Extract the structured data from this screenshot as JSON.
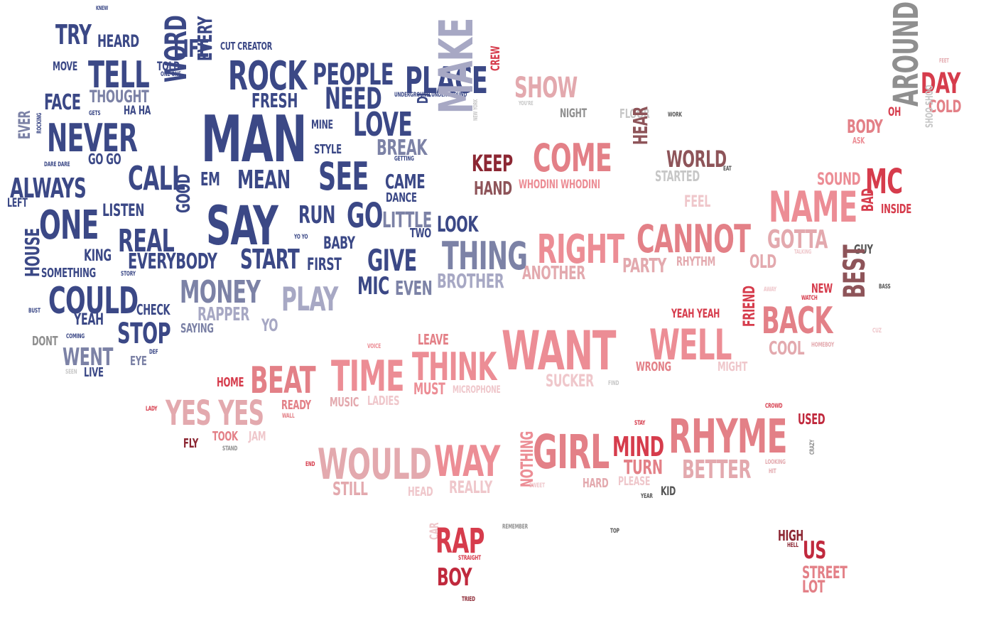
{
  "colors": {
    "navy": "#3b4886",
    "slate": "#7c82a6",
    "lavender": "#a7a8c4",
    "pink": "#ec8d95",
    "salmon": "#e38087",
    "red": "#d63c4c",
    "crimson": "#c0293d",
    "rose": "#e3a9ae",
    "lightrose": "#efc7cb",
    "mauve": "#8e5459",
    "gray": "#8f8f8f",
    "darkgray": "#555555",
    "lightgray": "#c7c7c7",
    "maroon": "#8c2733"
  },
  "words": [
    {
      "text": "KNEW",
      "weight": 8,
      "color": "navy"
    },
    {
      "text": "TRY",
      "weight": 38,
      "color": "navy"
    },
    {
      "text": "HEARD",
      "weight": 24,
      "color": "navy"
    },
    {
      "text": "LIFE",
      "weight": 34,
      "color": "navy"
    },
    {
      "text": "CUT CREATOR",
      "weight": 15,
      "color": "navy"
    },
    {
      "text": "MOVE",
      "weight": 17,
      "color": "navy"
    },
    {
      "text": "TELL",
      "weight": 52,
      "color": "navy"
    },
    {
      "text": "TOLD",
      "weight": 17,
      "color": "navy"
    },
    {
      "text": "ONE ONE",
      "weight": 9,
      "color": "navy"
    },
    {
      "text": "ROCK",
      "weight": 56,
      "color": "navy"
    },
    {
      "text": "PEOPLE",
      "weight": 42,
      "color": "navy"
    },
    {
      "text": "PLACE",
      "weight": 52,
      "color": "navy"
    },
    {
      "text": "CREW",
      "weight": 17,
      "color": "red"
    },
    {
      "text": "SHOW",
      "weight": 40,
      "color": "rose"
    },
    {
      "text": "FEET",
      "weight": 8,
      "color": "rose"
    },
    {
      "text": "DAY",
      "weight": 40,
      "color": "red"
    },
    {
      "text": "COLD",
      "weight": 24,
      "color": "salmon"
    },
    {
      "text": "FACE",
      "weight": 30,
      "color": "navy"
    },
    {
      "text": "THOUGHT",
      "weight": 24,
      "color": "slate"
    },
    {
      "text": "HA HA",
      "weight": 17,
      "color": "navy"
    },
    {
      "text": "EVERY",
      "weight": 28,
      "color": "navy"
    },
    {
      "text": "WORD",
      "weight": 42,
      "color": "navy"
    },
    {
      "text": "FRESH",
      "weight": 28,
      "color": "navy"
    },
    {
      "text": "NEED",
      "weight": 42,
      "color": "navy"
    },
    {
      "text": "UNDERGROUND UNDERGROUND",
      "weight": 9,
      "color": "navy"
    },
    {
      "text": "YOU'RE",
      "weight": 8,
      "color": "lightgray"
    },
    {
      "text": "NIGHT",
      "weight": 17,
      "color": "gray"
    },
    {
      "text": "FLOOR",
      "weight": 18,
      "color": "lightgray"
    },
    {
      "text": "WORK",
      "weight": 9,
      "color": "darkgray"
    },
    {
      "text": "OH",
      "weight": 17,
      "color": "red"
    },
    {
      "text": "BODY",
      "weight": 26,
      "color": "salmon"
    },
    {
      "text": "ASK",
      "weight": 12,
      "color": "pink"
    },
    {
      "text": "AROUND",
      "weight": 48,
      "color": "gray"
    },
    {
      "text": "SHOO SHOO",
      "weight": 14,
      "color": "lightgray"
    },
    {
      "text": "NEVER",
      "weight": 54,
      "color": "navy"
    },
    {
      "text": "GETS",
      "weight": 9,
      "color": "navy"
    },
    {
      "text": "MAN",
      "weight": 90,
      "color": "navy"
    },
    {
      "text": "MINE",
      "weight": 17,
      "color": "navy"
    },
    {
      "text": "LOVE",
      "weight": 46,
      "color": "navy"
    },
    {
      "text": "DJ",
      "weight": 20,
      "color": "navy"
    },
    {
      "text": "MAKE",
      "weight": 66,
      "color": "lavender"
    },
    {
      "text": "NEW YORK",
      "weight": 8,
      "color": "lightgray"
    },
    {
      "text": "EVER",
      "weight": 22,
      "color": "slate"
    },
    {
      "text": "ROCKING",
      "weight": 9,
      "color": "navy"
    },
    {
      "text": "STYLE",
      "weight": 18,
      "color": "navy"
    },
    {
      "text": "BREAK",
      "weight": 30,
      "color": "slate"
    },
    {
      "text": "GETTING",
      "weight": 9,
      "color": "navy"
    },
    {
      "text": "DARE DARE",
      "weight": 9,
      "color": "navy"
    },
    {
      "text": "GO GO",
      "weight": 20,
      "color": "navy"
    },
    {
      "text": "CALL",
      "weight": 46,
      "color": "navy"
    },
    {
      "text": "KEEP",
      "weight": 32,
      "color": "maroon"
    },
    {
      "text": "COME",
      "weight": 54,
      "color": "salmon"
    },
    {
      "text": "HEAR",
      "weight": 28,
      "color": "mauve"
    },
    {
      "text": "WORLD",
      "weight": 32,
      "color": "mauve"
    },
    {
      "text": "STARTED",
      "weight": 20,
      "color": "lightgray"
    },
    {
      "text": "EAT",
      "weight": 9,
      "color": "darkgray"
    },
    {
      "text": "SOUND",
      "weight": 24,
      "color": "pink"
    },
    {
      "text": "MC",
      "weight": 48,
      "color": "red"
    },
    {
      "text": "ALWAYS",
      "weight": 38,
      "color": "navy"
    },
    {
      "text": "EM",
      "weight": 26,
      "color": "navy"
    },
    {
      "text": "MEAN",
      "weight": 36,
      "color": "navy"
    },
    {
      "text": "SEE",
      "weight": 54,
      "color": "navy"
    },
    {
      "text": "CAME",
      "weight": 28,
      "color": "navy"
    },
    {
      "text": "HAND",
      "weight": 26,
      "color": "mauve"
    },
    {
      "text": "WHODINI WHODINI",
      "weight": 17,
      "color": "pink"
    },
    {
      "text": "LEFT",
      "weight": 17,
      "color": "navy"
    },
    {
      "text": "DANCE",
      "weight": 18,
      "color": "navy"
    },
    {
      "text": "FEEL",
      "weight": 22,
      "color": "lightrose"
    },
    {
      "text": "NAME",
      "weight": 60,
      "color": "pink"
    },
    {
      "text": "BAD",
      "weight": 22,
      "color": "red"
    },
    {
      "text": "INSIDE",
      "weight": 18,
      "color": "red"
    },
    {
      "text": "ONE",
      "weight": 56,
      "color": "navy"
    },
    {
      "text": "LISTEN",
      "weight": 24,
      "color": "navy"
    },
    {
      "text": "GOOD",
      "weight": 26,
      "color": "navy"
    },
    {
      "text": "SAY",
      "weight": 76,
      "color": "navy"
    },
    {
      "text": "RUN",
      "weight": 34,
      "color": "navy"
    },
    {
      "text": "GO",
      "weight": 48,
      "color": "navy"
    },
    {
      "text": "LITTLE",
      "weight": 30,
      "color": "slate"
    },
    {
      "text": "LOOK",
      "weight": 30,
      "color": "navy"
    },
    {
      "text": "CANNOT",
      "weight": 54,
      "color": "salmon"
    },
    {
      "text": "GOTTA",
      "weight": 36,
      "color": "rose"
    },
    {
      "text": "TWO",
      "weight": 18,
      "color": "navy"
    },
    {
      "text": "REAL",
      "weight": 44,
      "color": "navy"
    },
    {
      "text": "YO YO",
      "weight": 9,
      "color": "navy"
    },
    {
      "text": "BABY",
      "weight": 24,
      "color": "navy"
    },
    {
      "text": "RIGHT",
      "weight": 56,
      "color": "pink"
    },
    {
      "text": "GUY",
      "weight": 18,
      "color": "darkgray"
    },
    {
      "text": "TALKING",
      "weight": 8,
      "color": "lightrose"
    },
    {
      "text": "KING",
      "weight": 22,
      "color": "navy"
    },
    {
      "text": "EVERYBODY",
      "weight": 30,
      "color": "navy"
    },
    {
      "text": "START",
      "weight": 38,
      "color": "navy"
    },
    {
      "text": "FIRST",
      "weight": 24,
      "color": "navy"
    },
    {
      "text": "GIVE",
      "weight": 42,
      "color": "navy"
    },
    {
      "text": "THING",
      "weight": 54,
      "color": "slate"
    },
    {
      "text": "PARTY",
      "weight": 28,
      "color": "rose"
    },
    {
      "text": "RHYTHM",
      "weight": 18,
      "color": "rose"
    },
    {
      "text": "OLD",
      "weight": 26,
      "color": "rose"
    },
    {
      "text": "HOUSE",
      "weight": 28,
      "color": "navy"
    },
    {
      "text": "SOMETHING",
      "weight": 18,
      "color": "navy"
    },
    {
      "text": "STORY",
      "weight": 9,
      "color": "navy"
    },
    {
      "text": "ANOTHER",
      "weight": 26,
      "color": "rose"
    },
    {
      "text": "COULD",
      "weight": 52,
      "color": "navy"
    },
    {
      "text": "MONEY",
      "weight": 44,
      "color": "slate"
    },
    {
      "text": "PLAY",
      "weight": 46,
      "color": "lavender"
    },
    {
      "text": "MIC",
      "weight": 34,
      "color": "navy"
    },
    {
      "text": "EVEN",
      "weight": 28,
      "color": "slate"
    },
    {
      "text": "BROTHER",
      "weight": 28,
      "color": "lavender"
    },
    {
      "text": "NEW",
      "weight": 18,
      "color": "red"
    },
    {
      "text": "WATCH",
      "weight": 9,
      "color": "red"
    },
    {
      "text": "BEST",
      "weight": 42,
      "color": "mauve"
    },
    {
      "text": "BASS",
      "weight": 9,
      "color": "darkgray"
    },
    {
      "text": "AWAY",
      "weight": 9,
      "color": "lightrose"
    },
    {
      "text": "CHECK",
      "weight": 20,
      "color": "navy"
    },
    {
      "text": "BUST",
      "weight": 9,
      "color": "navy"
    },
    {
      "text": "YEAH",
      "weight": 22,
      "color": "navy"
    },
    {
      "text": "RAPPER",
      "weight": 26,
      "color": "lavender"
    },
    {
      "text": "YO",
      "weight": 24,
      "color": "lavender"
    },
    {
      "text": "YEAH YEAH",
      "weight": 17,
      "color": "red"
    },
    {
      "text": "FRIEND",
      "weight": 22,
      "color": "red"
    },
    {
      "text": "BACK",
      "weight": 52,
      "color": "salmon"
    },
    {
      "text": "STOP",
      "weight": 40,
      "color": "navy"
    },
    {
      "text": "SAYING",
      "weight": 18,
      "color": "slate"
    },
    {
      "text": "LEAVE",
      "weight": 20,
      "color": "salmon"
    },
    {
      "text": "WANT",
      "weight": 76,
      "color": "pink"
    },
    {
      "text": "WELL",
      "weight": 60,
      "color": "pink"
    },
    {
      "text": "CUZ",
      "weight": 9,
      "color": "lightrose"
    },
    {
      "text": "DONT",
      "weight": 18,
      "color": "gray"
    },
    {
      "text": "COMING",
      "weight": 9,
      "color": "navy"
    },
    {
      "text": "VOICE",
      "weight": 9,
      "color": "pink"
    },
    {
      "text": "THINK",
      "weight": 54,
      "color": "pink"
    },
    {
      "text": "COOL",
      "weight": 26,
      "color": "rose"
    },
    {
      "text": "HOMEBOY",
      "weight": 9,
      "color": "rose"
    },
    {
      "text": "WENT",
      "weight": 34,
      "color": "slate"
    },
    {
      "text": "DEF",
      "weight": 9,
      "color": "navy"
    },
    {
      "text": "EYE",
      "weight": 18,
      "color": "slate"
    },
    {
      "text": "SEEN",
      "weight": 9,
      "color": "lightgray"
    },
    {
      "text": "LIVE",
      "weight": 18,
      "color": "navy"
    },
    {
      "text": "TIME",
      "weight": 60,
      "color": "pink"
    },
    {
      "text": "WRONG",
      "weight": 18,
      "color": "salmon"
    },
    {
      "text": "MIGHT",
      "weight": 18,
      "color": "lightrose"
    },
    {
      "text": "BEAT",
      "weight": 52,
      "color": "salmon"
    },
    {
      "text": "HOME",
      "weight": 18,
      "color": "red"
    },
    {
      "text": "MUST",
      "weight": 22,
      "color": "pink"
    },
    {
      "text": "MICROPHONE",
      "weight": 14,
      "color": "lightrose"
    },
    {
      "text": "SUCKER",
      "weight": 24,
      "color": "lightrose"
    },
    {
      "text": "FIND",
      "weight": 9,
      "color": "lightgray"
    },
    {
      "text": "LADY",
      "weight": 9,
      "color": "red"
    },
    {
      "text": "YES YES",
      "weight": 48,
      "color": "rose"
    },
    {
      "text": "READY",
      "weight": 18,
      "color": "salmon"
    },
    {
      "text": "WALL",
      "weight": 9,
      "color": "salmon"
    },
    {
      "text": "MUSIC",
      "weight": 18,
      "color": "rose"
    },
    {
      "text": "LADIES",
      "weight": 18,
      "color": "lightrose"
    },
    {
      "text": "CROWD",
      "weight": 9,
      "color": "red"
    },
    {
      "text": "USED",
      "weight": 20,
      "color": "crimson"
    },
    {
      "text": "STAY",
      "weight": 9,
      "color": "red"
    },
    {
      "text": "RHYME",
      "weight": 66,
      "color": "salmon"
    },
    {
      "text": "CRAZY",
      "weight": 9,
      "color": "gray"
    },
    {
      "text": "TOOK",
      "weight": 18,
      "color": "salmon"
    },
    {
      "text": "JAM",
      "weight": 18,
      "color": "lightrose"
    },
    {
      "text": "FLY",
      "weight": 18,
      "color": "maroon"
    },
    {
      "text": "STAND",
      "weight": 9,
      "color": "gray"
    },
    {
      "text": "WOULD",
      "weight": 60,
      "color": "rose"
    },
    {
      "text": "WAY",
      "weight": 60,
      "color": "pink"
    },
    {
      "text": "NOTHING",
      "weight": 24,
      "color": "pink"
    },
    {
      "text": "GIRL",
      "weight": 66,
      "color": "salmon"
    },
    {
      "text": "MIND",
      "weight": 38,
      "color": "red"
    },
    {
      "text": "TURN",
      "weight": 28,
      "color": "salmon"
    },
    {
      "text": "BETTER",
      "weight": 36,
      "color": "rose"
    },
    {
      "text": "LOOKING",
      "weight": 9,
      "color": "rose"
    },
    {
      "text": "HIT",
      "weight": 9,
      "color": "rose"
    },
    {
      "text": "END",
      "weight": 9,
      "color": "red"
    },
    {
      "text": "STILL",
      "weight": 26,
      "color": "rose"
    },
    {
      "text": "HEAD",
      "weight": 18,
      "color": "lightrose"
    },
    {
      "text": "REALLY",
      "weight": 24,
      "color": "lightrose"
    },
    {
      "text": "SWEET",
      "weight": 9,
      "color": "lightrose"
    },
    {
      "text": "HARD",
      "weight": 18,
      "color": "rose"
    },
    {
      "text": "PLEASE",
      "weight": 17,
      "color": "lightrose"
    },
    {
      "text": "YEAR",
      "weight": 9,
      "color": "darkgray"
    },
    {
      "text": "KID",
      "weight": 17,
      "color": "darkgray"
    },
    {
      "text": "CAR",
      "weight": 17,
      "color": "lightrose"
    },
    {
      "text": "RAP",
      "weight": 48,
      "color": "red"
    },
    {
      "text": "REMEMBER",
      "weight": 9,
      "color": "gray"
    },
    {
      "text": "TOP",
      "weight": 9,
      "color": "darkgray"
    },
    {
      "text": "HIGH",
      "weight": 20,
      "color": "maroon"
    },
    {
      "text": "HELL",
      "weight": 9,
      "color": "maroon"
    },
    {
      "text": "US",
      "weight": 34,
      "color": "crimson"
    },
    {
      "text": "STRAIGHT",
      "weight": 9,
      "color": "red"
    },
    {
      "text": "BOY",
      "weight": 34,
      "color": "crimson"
    },
    {
      "text": "STREET",
      "weight": 24,
      "color": "salmon"
    },
    {
      "text": "LOT",
      "weight": 24,
      "color": "salmon"
    },
    {
      "text": "TRIED",
      "weight": 9,
      "color": "maroon"
    }
  ]
}
